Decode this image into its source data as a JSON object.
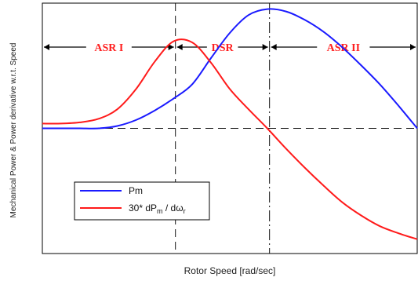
{
  "chart_data": {
    "type": "line",
    "xlabel": "Rotor Speed [rad/sec]",
    "ylabel": "Mechanical Power & Power derivative w.r.t. Speed",
    "xlim": [
      0,
      1
    ],
    "ylim": [
      -1.05,
      1.05
    ],
    "grid": false,
    "legend_position": "bottom-left",
    "reference_lines": [
      {
        "orientation": "horizontal",
        "style": "dashed",
        "value": 0
      },
      {
        "orientation": "vertical",
        "style": "dashed",
        "value": 0.355
      },
      {
        "orientation": "vertical",
        "style": "dash-dot",
        "value": 0.606
      }
    ],
    "regions": [
      {
        "label": "ASR I",
        "x_start": 0,
        "x_end": 0.355
      },
      {
        "label": "DSR",
        "x_start": 0.355,
        "x_end": 0.606
      },
      {
        "label": "ASR II",
        "x_start": 0.606,
        "x_end": 1
      }
    ],
    "series": [
      {
        "name": "Pm",
        "color": "#1a1aff",
        "x": [
          0.0,
          0.05,
          0.1,
          0.15,
          0.2,
          0.25,
          0.3,
          0.35,
          0.4,
          0.45,
          0.5,
          0.55,
          0.6,
          0.65,
          0.7,
          0.75,
          0.8,
          0.85,
          0.9,
          0.95,
          1.0
        ],
        "y": [
          0.0,
          0.0,
          0.0,
          0.0,
          0.02,
          0.07,
          0.15,
          0.25,
          0.37,
          0.59,
          0.8,
          0.95,
          1.0,
          0.98,
          0.91,
          0.81,
          0.68,
          0.53,
          0.37,
          0.19,
          0.0
        ]
      },
      {
        "name": "30* dP_m / dω_r",
        "color": "#ff1a1a",
        "x": [
          0.0,
          0.05,
          0.1,
          0.15,
          0.2,
          0.25,
          0.3,
          0.35,
          0.4,
          0.45,
          0.5,
          0.55,
          0.6,
          0.65,
          0.7,
          0.75,
          0.8,
          0.85,
          0.9,
          0.95,
          1.0
        ],
        "y": [
          0.04,
          0.04,
          0.05,
          0.08,
          0.16,
          0.33,
          0.56,
          0.73,
          0.72,
          0.55,
          0.33,
          0.16,
          0.0,
          -0.17,
          -0.33,
          -0.48,
          -0.62,
          -0.73,
          -0.82,
          -0.88,
          -0.93
        ]
      }
    ]
  },
  "legend": {
    "pm_label": "Pm",
    "deriv_main": "30* dP",
    "deriv_sub_m": "m",
    "deriv_mid": " / d",
    "deriv_omega": "ω",
    "deriv_sub_r": "r"
  },
  "colors": {
    "pm": "#1a1aff",
    "derivative": "#ff1a1a",
    "region_label": "#ff2020",
    "axes": "#000000"
  }
}
